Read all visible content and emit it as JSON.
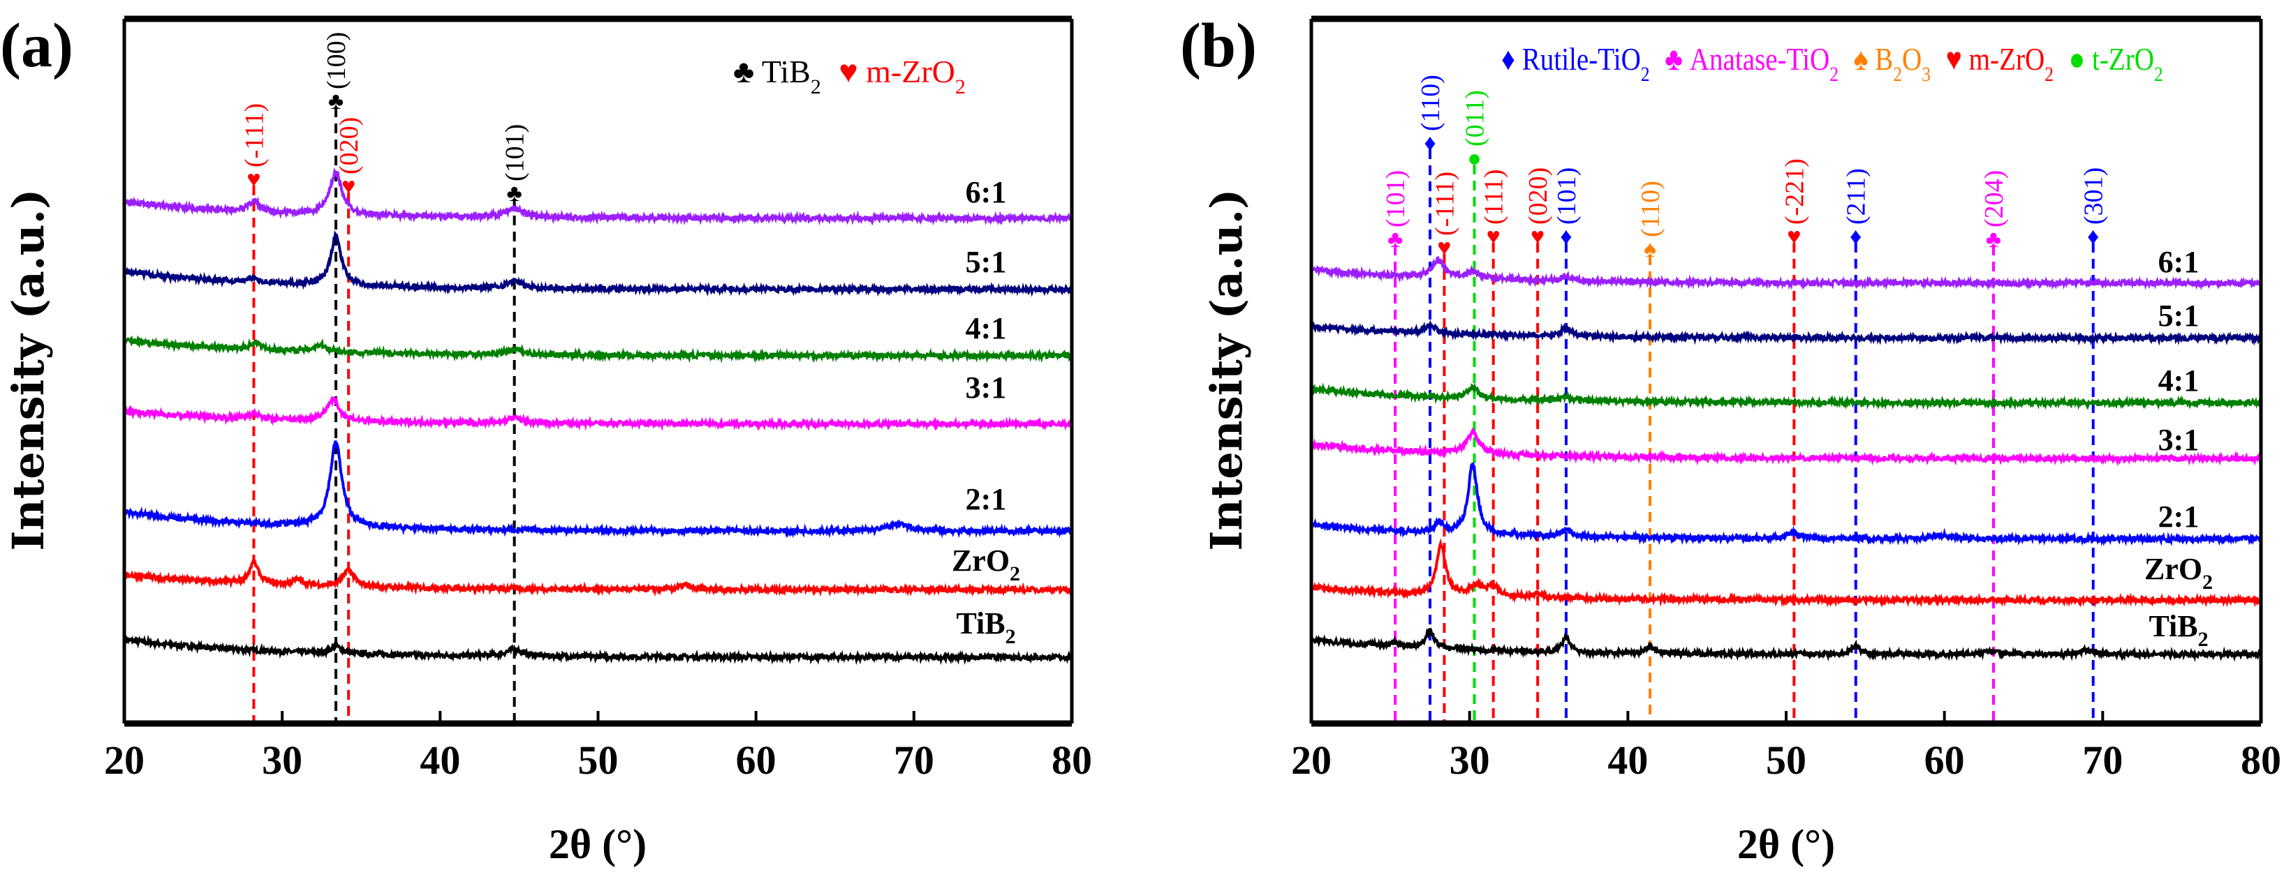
{
  "chart_data": [
    {
      "type": "line",
      "panel_label": "(a)",
      "xlabel": "2θ (°)",
      "ylabel": "Intensity (a.u.)",
      "xlim": [
        20,
        80
      ],
      "ylim": [
        0,
        100
      ],
      "xticks": [
        "20",
        "30",
        "40",
        "50",
        "60",
        "70",
        "80"
      ],
      "legend": [
        {
          "icon": "club-icon",
          "text": "TiB",
          "sub": "2",
          "color": "#000000"
        },
        {
          "icon": "heart-icon",
          "text": "m-ZrO",
          "sub": "2",
          "color": "#ff0000"
        }
      ],
      "reference_lines": [
        {
          "pos": 28.2,
          "hkl": "(-111)",
          "icon": "heart-icon",
          "color": "#ff0000"
        },
        {
          "pos": 33.4,
          "hkl": "(100)",
          "icon": "club-icon",
          "color": "#000000"
        },
        {
          "pos": 34.2,
          "hkl": "(020)",
          "icon": "heart-icon",
          "color": "#ff0000"
        },
        {
          "pos": 44.7,
          "hkl": "(101)",
          "icon": "club-icon",
          "color": "#000000"
        }
      ],
      "series": [
        {
          "name": "TiB",
          "sub": "2",
          "color": "#000000",
          "baseline": [
            11.9,
            9.4
          ],
          "peaks": [
            [
              33.4,
              1.0,
              0.4
            ],
            [
              44.7,
              1.0,
              0.6
            ]
          ]
        },
        {
          "name": "ZrO",
          "sub": "2",
          "color": "#ff0000",
          "baseline": [
            21.1,
            19.0
          ],
          "peaks": [
            [
              28.2,
              3.0,
              0.35
            ],
            [
              34.2,
              2.4,
              0.4
            ],
            [
              31.0,
              0.8,
              0.4
            ],
            [
              55.5,
              0.6,
              0.4
            ]
          ]
        },
        {
          "name": "2:1",
          "sub": "",
          "color": "#0000ff",
          "baseline": [
            30.0,
            27.3
          ],
          "peaks": [
            [
              33.4,
              12.0,
              0.45
            ],
            [
              69.0,
              1.0,
              0.8
            ]
          ]
        },
        {
          "name": "3:1",
          "sub": "",
          "color": "#ff00ff",
          "baseline": [
            44.3,
            42.5
          ],
          "peaks": [
            [
              33.2,
              3.0,
              0.5
            ],
            [
              28.2,
              0.8,
              0.4
            ],
            [
              44.7,
              0.8,
              0.6
            ]
          ]
        },
        {
          "name": "4:1",
          "sub": "",
          "color": "#008000",
          "baseline": [
            54.4,
            52.2
          ],
          "peaks": [
            [
              28.3,
              1.0,
              0.4
            ],
            [
              32.4,
              1.0,
              0.5
            ],
            [
              44.7,
              0.8,
              0.6
            ]
          ]
        },
        {
          "name": "5:1",
          "sub": "",
          "color": "#00007f",
          "baseline": [
            64.1,
            61.6
          ],
          "peaks": [
            [
              33.4,
              7.0,
              0.4
            ],
            [
              44.7,
              1.0,
              0.6
            ],
            [
              28.2,
              0.6,
              0.4
            ]
          ]
        },
        {
          "name": "6:1",
          "sub": "",
          "color": "#9b1fff",
          "baseline": [
            74.0,
            71.7
          ],
          "peaks": [
            [
              33.4,
              6.0,
              0.45
            ],
            [
              28.2,
              1.5,
              0.4
            ],
            [
              44.7,
              1.2,
              0.7
            ]
          ]
        }
      ]
    },
    {
      "type": "line",
      "panel_label": "(b)",
      "xlabel": "2θ (°)",
      "ylabel": "Intensity (a.u.)",
      "xlim": [
        20,
        80
      ],
      "ylim": [
        0,
        100
      ],
      "xticks": [
        "20",
        "30",
        "40",
        "50",
        "60",
        "70",
        "80"
      ],
      "legend": [
        {
          "icon": "diamond-icon",
          "text": "Rutile-TiO",
          "sub": "2",
          "color": "#0000ff"
        },
        {
          "icon": "club-icon",
          "text": "Anatase-TiO",
          "sub": "2",
          "color": "#ff00ff"
        },
        {
          "icon": "spade-icon",
          "text": "B",
          "sub": "2",
          "text2": "O",
          "sub2": "3",
          "color": "#ff8000"
        },
        {
          "icon": "heart-icon",
          "text": "m-ZrO",
          "sub": "2",
          "color": "#ff0000"
        },
        {
          "icon": "dot-icon",
          "text": "t-ZrO",
          "sub": "2",
          "color": "#00dd00"
        }
      ],
      "reference_lines": [
        {
          "pos": 25.3,
          "hkl": "(101)",
          "icon": "club-icon",
          "color": "#ff00ff"
        },
        {
          "pos": 27.5,
          "hkl": "(110)",
          "icon": "diamond-icon",
          "color": "#0000ff"
        },
        {
          "pos": 28.4,
          "hkl": "(-111)",
          "icon": "heart-icon",
          "color": "#ff0000"
        },
        {
          "pos": 30.3,
          "hkl": "(011)",
          "icon": "dot-icon",
          "color": "#00dd00"
        },
        {
          "pos": 31.5,
          "hkl": "(111)",
          "icon": "heart-icon",
          "color": "#ff0000"
        },
        {
          "pos": 34.3,
          "hkl": "(020)",
          "icon": "heart-icon",
          "color": "#ff0000"
        },
        {
          "pos": 36.1,
          "hkl": "(101)",
          "icon": "diamond-icon",
          "color": "#0000ff"
        },
        {
          "pos": 41.4,
          "hkl": "(110)",
          "icon": "spade-icon",
          "color": "#ff8000"
        },
        {
          "pos": 50.5,
          "hkl": "(-221)",
          "icon": "heart-icon",
          "color": "#ff0000"
        },
        {
          "pos": 54.4,
          "hkl": "(211)",
          "icon": "diamond-icon",
          "color": "#0000ff"
        },
        {
          "pos": 63.1,
          "hkl": "(204)",
          "icon": "club-icon",
          "color": "#ff00ff"
        },
        {
          "pos": 69.4,
          "hkl": "(301)",
          "icon": "diamond-icon",
          "color": "#0000ff"
        }
      ],
      "series": [
        {
          "name": "TiB",
          "sub": "2",
          "color": "#000000",
          "baseline": [
            11.9,
            9.8
          ],
          "peaks": [
            [
              27.5,
              2.5,
              0.3
            ],
            [
              36.1,
              2.0,
              0.3
            ],
            [
              41.4,
              1.0,
              0.3
            ],
            [
              54.4,
              1.2,
              0.35
            ],
            [
              25.3,
              0.5,
              0.3
            ],
            [
              69.0,
              0.6,
              0.5
            ],
            [
              63.0,
              0.4,
              0.5
            ]
          ]
        },
        {
          "name": "ZrO",
          "sub": "2",
          "color": "#ff0000",
          "baseline": [
            19.3,
            17.5
          ],
          "peaks": [
            [
              28.2,
              7.0,
              0.35
            ],
            [
              30.5,
              1.5,
              0.5
            ],
            [
              31.5,
              1.5,
              0.35
            ],
            [
              34.3,
              0.5,
              0.4
            ]
          ]
        },
        {
          "name": "2:1",
          "sub": "",
          "color": "#0000ff",
          "baseline": [
            28.2,
            26.2
          ],
          "peaks": [
            [
              30.2,
              10.0,
              0.35
            ],
            [
              28.1,
              1.5,
              0.3
            ],
            [
              36.1,
              1.0,
              0.35
            ],
            [
              50.4,
              0.8,
              0.4
            ],
            [
              59.8,
              0.5,
              0.6
            ]
          ]
        },
        {
          "name": "3:1",
          "sub": "",
          "color": "#ff00ff",
          "baseline": [
            39.6,
            37.6
          ],
          "peaks": [
            [
              30.2,
              3.0,
              0.5
            ]
          ]
        },
        {
          "name": "4:1",
          "sub": "",
          "color": "#008000",
          "baseline": [
            47.5,
            45.5
          ],
          "peaks": [
            [
              30.2,
              1.5,
              0.45
            ],
            [
              36.1,
              0.5,
              0.4
            ]
          ]
        },
        {
          "name": "5:1",
          "sub": "",
          "color": "#00007f",
          "baseline": [
            56.3,
            54.7
          ],
          "peaks": [
            [
              27.5,
              1.2,
              0.4
            ],
            [
              36.1,
              1.2,
              0.35
            ]
          ]
        },
        {
          "name": "6:1",
          "sub": "",
          "color": "#9b1fff",
          "baseline": [
            64.4,
            62.5
          ],
          "peaks": [
            [
              28.0,
              2.5,
              0.45
            ],
            [
              30.2,
              1.0,
              0.5
            ],
            [
              36.1,
              0.7,
              0.4
            ]
          ]
        }
      ]
    }
  ]
}
